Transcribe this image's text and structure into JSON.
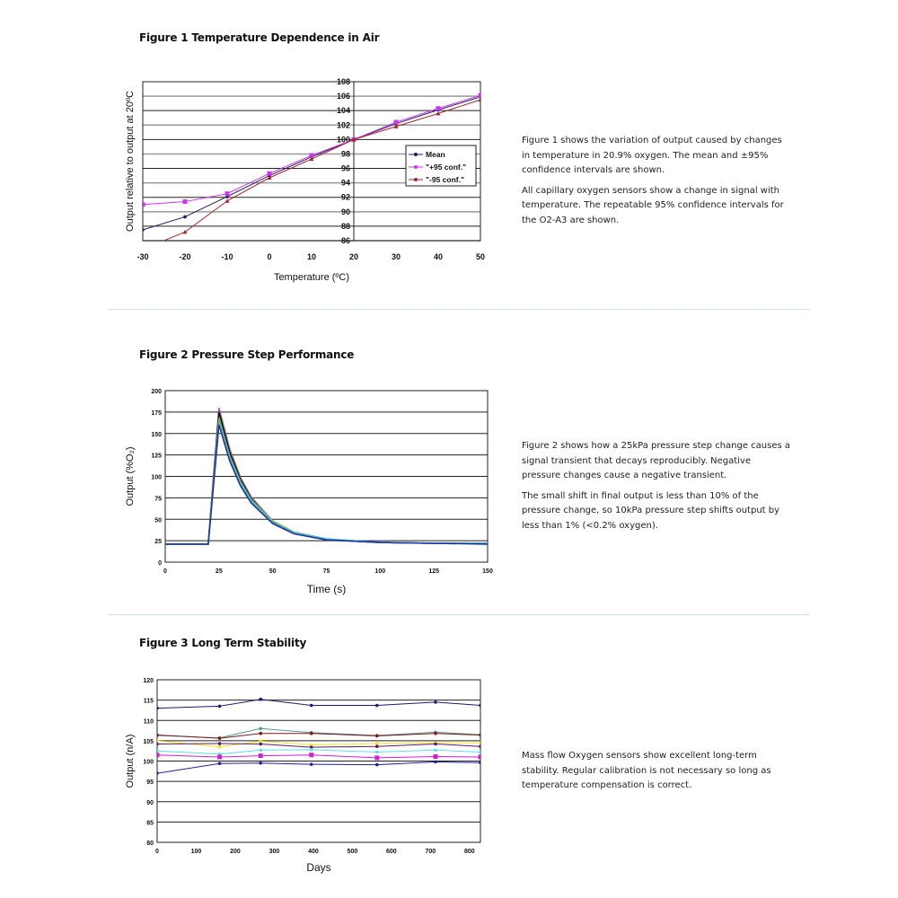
{
  "figures": [
    {
      "title": "Figure 1 Temperature Dependence in Air",
      "paragraphs": [
        "Figure 1 shows the variation of output caused by changes in temperature in 20.9% oxygen. The mean and ±95% confidence intervals are shown.",
        "All capillary oxygen sensors show a change in signal with temperature. The repeatable 95% confidence intervals for the O2-A3 are shown."
      ]
    },
    {
      "title": "Figure 2 Pressure Step Performance",
      "paragraphs": [
        "Figure 2 shows how a 25kPa pressure step change causes a signal transient that decays reproducibly. Negative pressure changes cause a negative transient.",
        "The small shift in final output is less than 10% of the pressure change, so 10kPa pressure step shifts output by less than 1% (<0.2% oxygen)."
      ]
    },
    {
      "title": "Figure 3 Long Term Stability",
      "paragraphs": [
        "Mass flow Oxygen sensors show excellent long-term stability. Regular calibration is not necessary so long as temperature compensation is correct."
      ]
    }
  ],
  "colors": {
    "divider": "#cfe3df"
  },
  "chart_data": [
    {
      "type": "line",
      "xlabel": "Temperature (ºC)",
      "ylabel": "Output relative to output at 20ºC",
      "xlim": [
        -30,
        50
      ],
      "ylim": [
        86,
        108
      ],
      "xticks": [
        -30,
        -20,
        -10,
        0,
        10,
        20,
        30,
        40,
        50
      ],
      "yticks": [
        86,
        88,
        90,
        92,
        94,
        96,
        98,
        100,
        102,
        104,
        106,
        108
      ],
      "grid": true,
      "legend": "right",
      "x": [
        -30,
        -20,
        -10,
        0,
        10,
        20,
        30,
        40,
        50
      ],
      "series": [
        {
          "name": "Mean",
          "color": "#1c1c5c",
          "marker": "diamond",
          "values": [
            87.5,
            89.3,
            92.1,
            95.0,
            97.6,
            100,
            102.2,
            104.1,
            105.9
          ]
        },
        {
          "name": "\"+95 conf.\"",
          "color": "#cc33ee",
          "marker": "square",
          "values": [
            91.0,
            91.4,
            92.5,
            95.3,
            97.8,
            100,
            102.4,
            104.3,
            106.1
          ]
        },
        {
          "name": "\"-95 conf.\"",
          "color": "#a0282a",
          "marker": "triangle",
          "values": [
            84.8,
            87.2,
            91.5,
            94.7,
            97.3,
            100,
            101.8,
            103.6,
            105.5
          ]
        }
      ]
    },
    {
      "type": "line",
      "xlabel": "Time (s)",
      "ylabel": "Output (%O₂)",
      "xlim": [
        0,
        150
      ],
      "ylim": [
        0,
        200
      ],
      "xticks": [
        0,
        25,
        50,
        75,
        100,
        125,
        150
      ],
      "yticks": [
        0,
        25,
        50,
        75,
        100,
        125,
        150,
        175,
        200
      ],
      "grid": true,
      "x": [
        0,
        20,
        25,
        30,
        35,
        40,
        50,
        60,
        75,
        100,
        125,
        150
      ],
      "series": [
        {
          "color": "#9a6aa0",
          "values": [
            21,
            21,
            180,
            132,
            99,
            76,
            48,
            34,
            26,
            23,
            22,
            22
          ]
        },
        {
          "color": "#111111",
          "values": [
            21,
            21,
            175,
            128,
            96,
            74,
            47,
            34,
            26,
            23,
            22,
            22
          ]
        },
        {
          "color": "#7fae4a",
          "values": [
            21,
            21,
            168,
            124,
            94,
            73,
            48,
            35,
            27,
            23,
            22,
            22
          ]
        },
        {
          "color": "#3cc8d8",
          "values": [
            21,
            21,
            163,
            121,
            92,
            71,
            46,
            34,
            27,
            23,
            22,
            22
          ]
        },
        {
          "color": "#2233aa",
          "values": [
            21,
            21,
            160,
            118,
            89,
            69,
            45,
            33,
            26,
            23,
            22,
            21
          ]
        }
      ]
    },
    {
      "type": "line",
      "xlabel": "Days",
      "ylabel": "Output (n/A)",
      "xlim": [
        0,
        828
      ],
      "ylim": [
        80,
        120
      ],
      "xticks": [
        0,
        100,
        200,
        300,
        400,
        500,
        600,
        700,
        800
      ],
      "yticks": [
        80,
        85,
        90,
        95,
        100,
        105,
        110,
        115,
        120
      ],
      "grid": true,
      "x": [
        0,
        160,
        265,
        395,
        563,
        713,
        828
      ],
      "series": [
        {
          "color": "#1c1c6c",
          "values": [
            113,
            113.5,
            115.2,
            113.7,
            113.7,
            114.5,
            113.7
          ]
        },
        {
          "color": "#5a9a90",
          "values": [
            106.3,
            105.7,
            108,
            107,
            106.3,
            107.1,
            106.5
          ]
        },
        {
          "color": "#7a1a1a",
          "values": [
            106.4,
            105.6,
            106.8,
            106.8,
            106.2,
            106.8,
            106.4
          ]
        },
        {
          "color": "#f0e020",
          "values": [
            105,
            103.5,
            104.9,
            104,
            104.3,
            104.5,
            104.5
          ]
        },
        {
          "color": "#5a1a6a",
          "values": [
            104.2,
            104.3,
            104.2,
            103.4,
            103.6,
            104.2,
            103.6
          ]
        },
        {
          "color": "#60e0e8",
          "values": [
            102.5,
            101.7,
            102.7,
            102.8,
            102.2,
            102.7,
            102.2
          ]
        },
        {
          "color": "#d020d0",
          "values": [
            101.5,
            101,
            101.3,
            101.5,
            100.8,
            101.1,
            101
          ]
        },
        {
          "color": "#2020a0",
          "values": [
            97,
            99.4,
            99.5,
            99.2,
            99.1,
            99.8,
            99.6
          ]
        }
      ]
    }
  ]
}
